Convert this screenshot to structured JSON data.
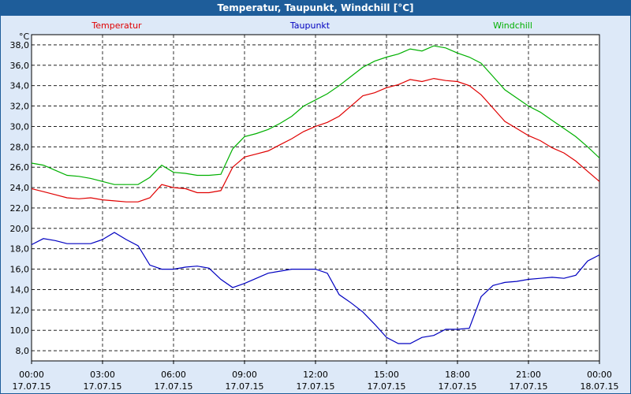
{
  "window": {
    "title": "Temperatur, Taupunkt, Windchill [°C]"
  },
  "chart_data": {
    "type": "line",
    "title": "Temperatur, Taupunkt, Windchill [°C]",
    "ylabel": "°C",
    "xlabel": "",
    "ylim": [
      7.0,
      39.0
    ],
    "xlim": [
      0,
      24
    ],
    "grid": true,
    "legend_position": "top",
    "y_ticks": [
      "8,0",
      "10,0",
      "12,0",
      "14,0",
      "16,0",
      "18,0",
      "20,0",
      "22,0",
      "24,0",
      "26,0",
      "28,0",
      "30,0",
      "32,0",
      "34,0",
      "36,0",
      "38,0"
    ],
    "x_ticks": [
      {
        "time": "00:00",
        "date": "17.07.15"
      },
      {
        "time": "03:00",
        "date": "17.07.15"
      },
      {
        "time": "06:00",
        "date": "17.07.15"
      },
      {
        "time": "09:00",
        "date": "17.07.15"
      },
      {
        "time": "12:00",
        "date": "17.07.15"
      },
      {
        "time": "15:00",
        "date": "17.07.15"
      },
      {
        "time": "18:00",
        "date": "17.07.15"
      },
      {
        "time": "21:00",
        "date": "17.07.15"
      },
      {
        "time": "00:00",
        "date": "18.07.15"
      }
    ],
    "x": [
      "00:00",
      "00:30",
      "01:00",
      "01:30",
      "02:00",
      "02:30",
      "03:00",
      "03:30",
      "04:00",
      "04:30",
      "05:00",
      "05:30",
      "06:00",
      "06:30",
      "07:00",
      "07:30",
      "08:00",
      "08:30",
      "09:00",
      "09:30",
      "10:00",
      "10:30",
      "11:00",
      "11:30",
      "12:00",
      "12:30",
      "13:00",
      "13:30",
      "14:00",
      "14:30",
      "15:00",
      "15:30",
      "16:00",
      "16:30",
      "17:00",
      "17:30",
      "18:00",
      "18:30",
      "19:00",
      "19:30",
      "20:00",
      "20:30",
      "21:00",
      "21:30",
      "22:00",
      "22:30",
      "23:00",
      "23:30",
      "24:00"
    ],
    "series": [
      {
        "name": "Temperatur",
        "color": "#e00000",
        "values": [
          23.9,
          23.6,
          23.3,
          23.0,
          22.9,
          23.0,
          22.8,
          22.7,
          22.6,
          22.6,
          23.0,
          24.3,
          24.0,
          23.9,
          23.5,
          23.5,
          23.7,
          26.0,
          27.0,
          27.3,
          27.6,
          28.2,
          28.8,
          29.5,
          30.0,
          30.4,
          31.0,
          32.0,
          33.0,
          33.3,
          33.8,
          34.1,
          34.6,
          34.4,
          34.7,
          34.5,
          34.4,
          34.0,
          33.1,
          31.8,
          30.5,
          29.8,
          29.1,
          28.6,
          27.9,
          27.4,
          26.6,
          25.6,
          24.6
        ]
      },
      {
        "name": "Taupunkt",
        "color": "#0000c0",
        "values": [
          18.4,
          19.0,
          18.8,
          18.5,
          18.5,
          18.5,
          18.9,
          19.6,
          18.9,
          18.3,
          16.4,
          16.0,
          16.0,
          16.2,
          16.3,
          16.1,
          15.0,
          14.2,
          14.6,
          15.1,
          15.6,
          15.8,
          16.0,
          16.0,
          16.0,
          15.6,
          13.5,
          12.7,
          11.8,
          10.6,
          9.3,
          8.7,
          8.7,
          9.3,
          9.5,
          10.1,
          10.1,
          10.2,
          13.3,
          14.4,
          14.7,
          14.8,
          15.0,
          15.1,
          15.2,
          15.1,
          15.4,
          16.8,
          17.4
        ]
      },
      {
        "name": "Windchill",
        "color": "#00b000",
        "values": [
          26.4,
          26.2,
          25.7,
          25.2,
          25.1,
          24.9,
          24.6,
          24.3,
          24.3,
          24.3,
          25.0,
          26.2,
          25.5,
          25.4,
          25.2,
          25.2,
          25.3,
          27.8,
          29.0,
          29.3,
          29.7,
          30.3,
          31.0,
          32.0,
          32.6,
          33.2,
          34.0,
          34.9,
          35.8,
          36.4,
          36.8,
          37.1,
          37.6,
          37.4,
          37.9,
          37.7,
          37.2,
          36.8,
          36.2,
          34.9,
          33.6,
          32.8,
          32.0,
          31.4,
          30.6,
          29.8,
          29.0,
          28.0,
          26.9
        ]
      }
    ]
  }
}
